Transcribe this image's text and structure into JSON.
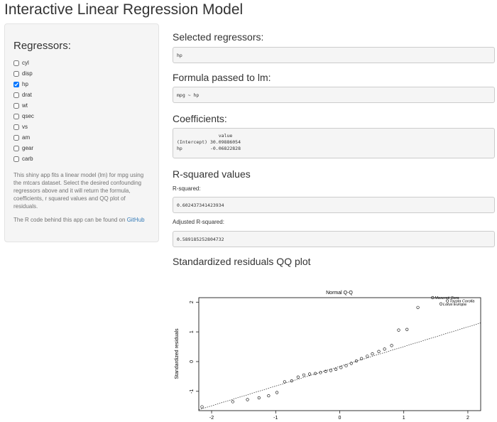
{
  "app": {
    "title": "Interactive Linear Regression Model"
  },
  "sidebar": {
    "heading": "Regressors:",
    "checkboxes": [
      {
        "label": "cyl",
        "checked": false
      },
      {
        "label": "disp",
        "checked": false
      },
      {
        "label": "hp",
        "checked": true
      },
      {
        "label": "drat",
        "checked": false
      },
      {
        "label": "wt",
        "checked": false
      },
      {
        "label": "qsec",
        "checked": false
      },
      {
        "label": "vs",
        "checked": false
      },
      {
        "label": "am",
        "checked": false
      },
      {
        "label": "gear",
        "checked": false
      },
      {
        "label": "carb",
        "checked": false
      }
    ],
    "help_text": "This shiny app fits a linear model (lm) for mpg using the mtcars dataset. Select the desired confounding regressors above and it will return the formula, coefficients, r squared values and QQ plot of residuals.",
    "code_text": "The R code behind this app can be found on",
    "github_link": "GitHub"
  },
  "main": {
    "selected_heading": "Selected regressors:",
    "selected_value": "hp",
    "formula_heading": "Formula passed to lm:",
    "formula_value": "mpg ~ hp",
    "coef_heading": "Coefficients:",
    "coef_header": "               value",
    "coef_row1": "(Intercept) 30.09886054",
    "coef_row2": "hp          -0.06822828",
    "rsq_heading": "R-squared values",
    "rsq_label": "R-squared:",
    "rsq_value": "0.602437341423934",
    "adj_label": "Adjusted R-squared:",
    "adj_value": "0.589185252804732",
    "qq_heading": "Standardized residuals QQ plot"
  },
  "chart_data": {
    "type": "scatter",
    "title": "Normal Q-Q",
    "xlabel": "",
    "ylabel": "Standardized residuals",
    "xlim": [
      -2.2,
      2.2
    ],
    "ylim": [
      -1.65,
      2.15
    ],
    "xticks": [
      -2,
      -1,
      0,
      1,
      2
    ],
    "yticks": [
      -1,
      0,
      1,
      2
    ],
    "grid": false,
    "points": [
      [
        -2.15,
        -1.52
      ],
      [
        -1.67,
        -1.35
      ],
      [
        -1.44,
        -1.28
      ],
      [
        -1.26,
        -1.22
      ],
      [
        -1.11,
        -1.15
      ],
      [
        -0.98,
        -1.04
      ],
      [
        -0.86,
        -0.68
      ],
      [
        -0.75,
        -0.65
      ],
      [
        -0.65,
        -0.52
      ],
      [
        -0.56,
        -0.45
      ],
      [
        -0.47,
        -0.42
      ],
      [
        -0.38,
        -0.4
      ],
      [
        -0.3,
        -0.37
      ],
      [
        -0.22,
        -0.33
      ],
      [
        -0.14,
        -0.3
      ],
      [
        -0.06,
        -0.26
      ],
      [
        0.02,
        -0.2
      ],
      [
        0.1,
        -0.14
      ],
      [
        0.18,
        -0.06
      ],
      [
        0.26,
        0.02
      ],
      [
        0.34,
        0.1
      ],
      [
        0.43,
        0.18
      ],
      [
        0.51,
        0.26
      ],
      [
        0.61,
        0.34
      ],
      [
        0.7,
        0.42
      ],
      [
        0.81,
        0.54
      ],
      [
        0.92,
        1.06
      ],
      [
        1.05,
        1.08
      ],
      [
        1.22,
        1.82
      ]
    ],
    "labeled_points": [
      {
        "x": 1.45,
        "y": 2.15,
        "label": "Maserati Bora"
      },
      {
        "x": 1.68,
        "y": 2.04,
        "label": "Toyota Corolla"
      },
      {
        "x": 1.58,
        "y": 1.94,
        "label": "Lotus Europa"
      }
    ],
    "reference_line": {
      "x0": -2.2,
      "y0": -1.62,
      "x1": 2.2,
      "y1": 1.3
    }
  }
}
